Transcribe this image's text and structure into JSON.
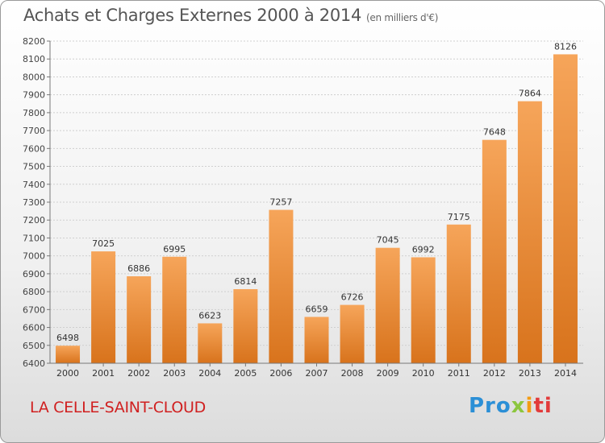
{
  "header": {
    "title": "Achats et Charges Externes 2000 à 2014",
    "subtitle": "(en milliers d'€)"
  },
  "footer": {
    "commune": "LA CELLE-SAINT-CLOUD",
    "logo": {
      "p1": "Pro",
      "p2": "x",
      "p3": "i",
      "p4": "ti"
    }
  },
  "colors": {
    "bar_top": "#f6a55a",
    "bar_bottom": "#d8731c",
    "commune": "#d02020"
  },
  "chart_data": {
    "type": "bar",
    "title": "Achats et Charges Externes 2000 à 2014",
    "subtitle": "(en milliers d'€)",
    "xlabel": "",
    "ylabel": "",
    "ylim": [
      6400,
      8200
    ],
    "ytick_step": 100,
    "grid": true,
    "categories": [
      "2000",
      "2001",
      "2002",
      "2003",
      "2004",
      "2005",
      "2006",
      "2007",
      "2008",
      "2009",
      "2010",
      "2011",
      "2012",
      "2013",
      "2014"
    ],
    "values": [
      6498,
      7025,
      6886,
      6995,
      6623,
      6814,
      7257,
      6659,
      6726,
      7045,
      6992,
      7175,
      7648,
      7864,
      8126
    ]
  }
}
